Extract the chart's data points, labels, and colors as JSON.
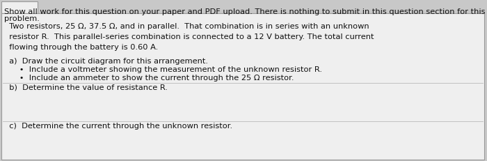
{
  "background_color": "#c8c8c8",
  "box_color": "#efefef",
  "header_line1": "Show all work for this question on your paper and PDF upload. There is nothing to submit in this question section for this",
  "header_line2": "problem.",
  "body_text": "  Two resistors, 25 Ω, 37.5 Ω, and in parallel.  That combination is in series with an unknown\n  resistor R.  This parallel-series combination is connected to a 12 V battery. The total current\n  flowing through the battery is 0.60 A.",
  "part_a_label": "  a)  Draw the circuit diagram for this arrangement.",
  "bullet_1": "      •  Include a voltmeter showing the measurement of the unknown resistor R.",
  "bullet_2": "      •  Include an ammeter to show the current through the 25 Ω resistor.",
  "part_b_label": "  b)  Determine the value of resistance R.",
  "part_c_label": "  c)  Determine the current through the unknown resistor.",
  "font_size": 8.2,
  "text_color": "#111111",
  "divider_color": "#bbbbbb",
  "border_color": "#999999"
}
